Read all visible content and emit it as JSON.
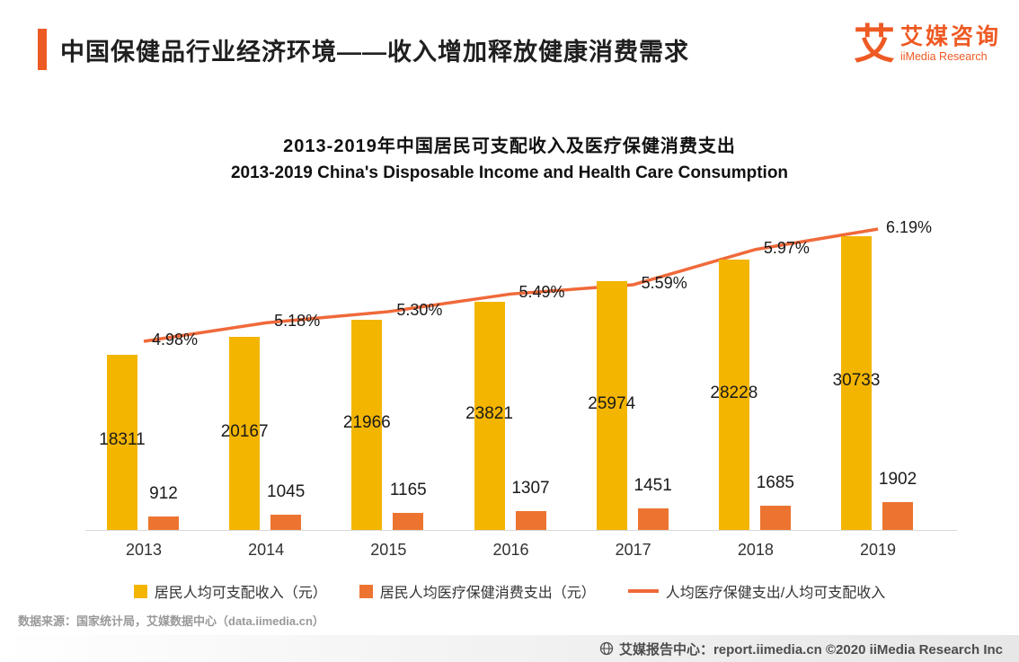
{
  "header": {
    "title": "中国保健品行业经济环境——收入增加释放健康消费需求",
    "logo": {
      "icon": "艾",
      "name_cn": "艾媒咨询",
      "name_en": "iiMedia Research"
    }
  },
  "chart": {
    "title_cn": "2013-2019年中国居民可支配收入及医疗保健消费支出",
    "title_en": "2013-2019  China's Disposable Income and Health Care Consumption"
  },
  "chart_data": {
    "type": "combo-bar-line",
    "title": "2013-2019年中国居民可支配收入及医疗保健消费支出",
    "subtitle": "2013-2019  China's Disposable Income and Health Care Consumption",
    "categories": [
      "2013",
      "2014",
      "2015",
      "2016",
      "2017",
      "2018",
      "2019"
    ],
    "series": [
      {
        "name": "居民人均可支配收入（元）",
        "type": "bar",
        "color": "#F3B500",
        "values": [
          18311,
          20167,
          21966,
          23821,
          25974,
          28228,
          30733
        ]
      },
      {
        "name": "居民人均医疗保健消费支出（元）",
        "type": "bar",
        "color": "#EC7430",
        "values": [
          912,
          1045,
          1165,
          1307,
          1451,
          1685,
          1902
        ]
      },
      {
        "name": "人均医疗保健支出/人均可支配收入",
        "type": "line",
        "color": "#F0693A",
        "unit": "%",
        "values": [
          4.98,
          5.18,
          5.3,
          5.49,
          5.59,
          5.97,
          6.19
        ]
      }
    ],
    "legend_position": "bottom",
    "grid": false,
    "value_labels": true
  },
  "source_note": "数据来源：国家统计局，艾媒数据中心（data.iimedia.cn）",
  "footer": {
    "text": "艾媒报告中心：report.iimedia.cn ©2020 iiMedia Research Inc"
  }
}
